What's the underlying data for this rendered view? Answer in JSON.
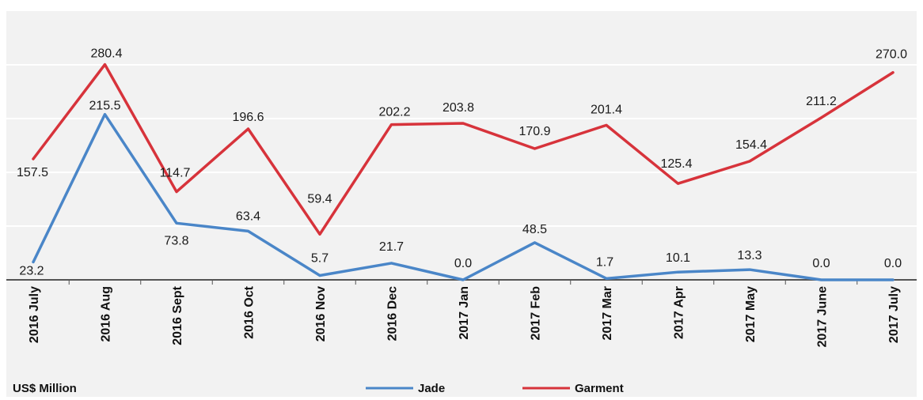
{
  "chart_data": {
    "type": "line",
    "title": "",
    "xlabel": "",
    "ylabel": "",
    "unit_label": "US$ Million",
    "categories": [
      "2016 July",
      "2016 Aug",
      "2016 Sept",
      "2016 Oct",
      "2016 Nov",
      "2016 Dec",
      "2017 Jan",
      "2017 Feb",
      "2017 Mar",
      "2017 Apr",
      "2017 May",
      "2017 June",
      "2017 July"
    ],
    "series": [
      {
        "name": "Jade",
        "color": "#4a86c8",
        "values": [
          23.2,
          215.5,
          73.8,
          63.4,
          5.7,
          21.7,
          0.0,
          48.5,
          1.7,
          10.1,
          13.3,
          0.0,
          0.0
        ],
        "labels": [
          "23.2",
          "215.5",
          "73.8",
          "63.4",
          "5.7",
          "21.7",
          "0.0",
          "48.5",
          "1.7",
          "10.1",
          "13.3",
          "0.0",
          "0.0"
        ]
      },
      {
        "name": "Garment",
        "color": "#d7333b",
        "values": [
          157.5,
          280.4,
          114.7,
          196.6,
          59.4,
          202.2,
          203.8,
          170.9,
          201.4,
          125.4,
          154.4,
          211.2,
          270.0
        ],
        "labels": [
          "157.5",
          "280.4",
          "114.7",
          "196.6",
          "59.4",
          "202.2",
          "203.8",
          "170.9",
          "201.4",
          "125.4",
          "154.4",
          "211.2",
          "270.0"
        ]
      }
    ],
    "ylim": [
      0,
      350
    ],
    "gridlines": [
      70,
      140,
      210,
      280
    ],
    "grid": true,
    "legend_position": "bottom-center",
    "plot_background": "#f2f2f2",
    "gridline_color": "#ffffff",
    "axis_color": "#555555"
  }
}
